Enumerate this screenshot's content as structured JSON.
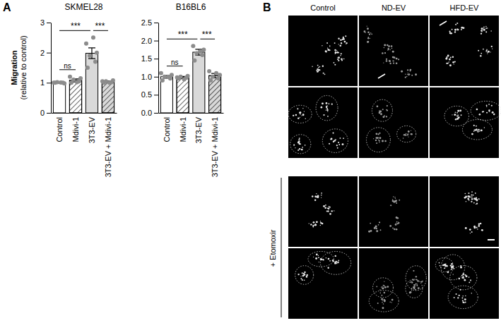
{
  "chart_data": [
    {
      "type": "bar",
      "title": "SKMEL28",
      "y_label": [
        "Migration",
        "(relative to control)"
      ],
      "categories": [
        "Control",
        "Mdivi-1",
        "3T3-EV",
        "3T3-EV + Mdivi-1"
      ],
      "values": [
        1.0,
        1.08,
        1.98,
        1.03
      ],
      "errors": [
        0.02,
        0.05,
        0.18,
        0.03
      ],
      "points": [
        [
          1.0,
          1.0,
          1.02,
          0.98,
          1.0,
          1.01
        ],
        [
          1.0,
          1.05,
          1.1,
          1.15,
          1.2,
          1.02
        ],
        [
          1.5,
          1.7,
          1.9,
          2.0,
          2.3,
          2.5
        ],
        [
          1.0,
          1.02,
          1.05,
          1.08,
          1.05,
          1.0
        ]
      ],
      "colors": [
        "#ffffff",
        "#ffffff",
        "#d9d9d9",
        "#d9d9d9"
      ],
      "ylim": [
        0,
        3
      ],
      "yticks": [
        0,
        1,
        2,
        3
      ],
      "annotations": [
        {
          "from": 0,
          "to": 1,
          "label": "ns"
        },
        {
          "from": 0,
          "to": 2,
          "label": "***"
        },
        {
          "from": 2,
          "to": 3,
          "label": "***"
        }
      ]
    },
    {
      "type": "bar",
      "title": "B16BL6",
      "categories": [
        "Control",
        "Mdivi-1",
        "3T3-EV",
        "3T3-EV + Mdivi-1"
      ],
      "values": [
        1.0,
        0.98,
        1.68,
        1.03
      ],
      "errors": [
        0.04,
        0.03,
        0.08,
        0.06
      ],
      "points": [
        [
          0.9,
          0.95,
          1.0,
          1.05,
          1.1,
          1.0
        ],
        [
          0.95,
          0.97,
          1.0,
          1.02,
          0.98,
          0.93
        ],
        [
          1.45,
          1.6,
          1.65,
          1.75,
          1.85,
          1.7
        ],
        [
          0.9,
          0.95,
          1.0,
          1.05,
          1.15,
          1.1
        ]
      ],
      "colors": [
        "#ffffff",
        "#ffffff",
        "#d9d9d9",
        "#d9d9d9"
      ],
      "ylim": [
        0,
        2.5
      ],
      "yticks": [
        {
          "value": 0,
          "label": "0.0"
        },
        {
          "value": 0.5,
          "label": "0.5"
        },
        {
          "value": 1,
          "label": "1.0"
        },
        {
          "value": 1.5,
          "label": "1.5"
        },
        {
          "value": 2,
          "label": "2.0"
        },
        {
          "value": 2.5,
          "label": "2.5"
        }
      ],
      "annotations": [
        {
          "from": 0,
          "to": 1,
          "label": "ns"
        },
        {
          "from": 0,
          "to": 2,
          "label": "***"
        },
        {
          "from": 2,
          "to": 3,
          "label": "***"
        }
      ]
    }
  ],
  "panels": {
    "A": {
      "label": "A"
    },
    "B": {
      "label": "B",
      "columns": [
        "Control",
        "ND-EV",
        "HFD-EV"
      ],
      "row_group_label": "+ Etomoxir"
    }
  }
}
